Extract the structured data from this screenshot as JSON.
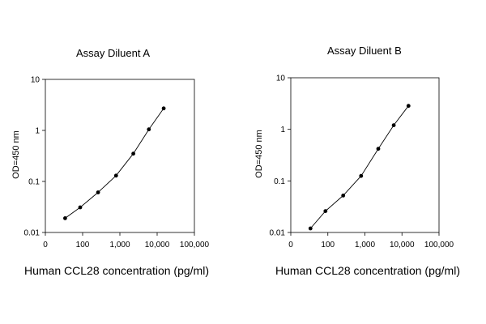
{
  "chart_data": [
    {
      "type": "line",
      "title": "Assay Diluent A",
      "xlabel": "Human CCL28 concentration (pg/ml)",
      "ylabel": "OD=450 nm",
      "xscale": "log",
      "yscale": "log",
      "xlim": [
        10,
        100000
      ],
      "ylim": [
        0.01,
        10
      ],
      "xtick_labels": [
        "0",
        "100",
        "1,000",
        "10,000",
        "100,000"
      ],
      "ytick_labels": [
        "0.01",
        "0.1",
        "1",
        "10"
      ],
      "grid": false,
      "legend": "none",
      "marker_color": "#000000",
      "line_color": "#000000",
      "series": [
        {
          "x": [
            34,
            86,
            260,
            790,
            2300,
            6000,
            15000
          ],
          "y": [
            0.019,
            0.031,
            0.061,
            0.13,
            0.35,
            1.05,
            2.7
          ]
        }
      ]
    },
    {
      "type": "line",
      "title": "Assay Diluent B",
      "xlabel": "Human CCL28 concentration (pg/ml)",
      "ylabel": "OD=450 nm",
      "xscale": "log",
      "yscale": "log",
      "xlim": [
        10,
        100000
      ],
      "ylim": [
        0.01,
        10
      ],
      "xtick_labels": [
        "0",
        "100",
        "1,000",
        "10,000",
        "100,000"
      ],
      "ytick_labels": [
        "0.01",
        "0.1",
        "1",
        "10"
      ],
      "grid": false,
      "legend": "none",
      "marker_color": "#000000",
      "line_color": "#000000",
      "series": [
        {
          "x": [
            34,
            86,
            260,
            790,
            2300,
            6000,
            15000
          ],
          "y": [
            0.012,
            0.026,
            0.052,
            0.125,
            0.42,
            1.2,
            2.85
          ]
        }
      ]
    }
  ]
}
